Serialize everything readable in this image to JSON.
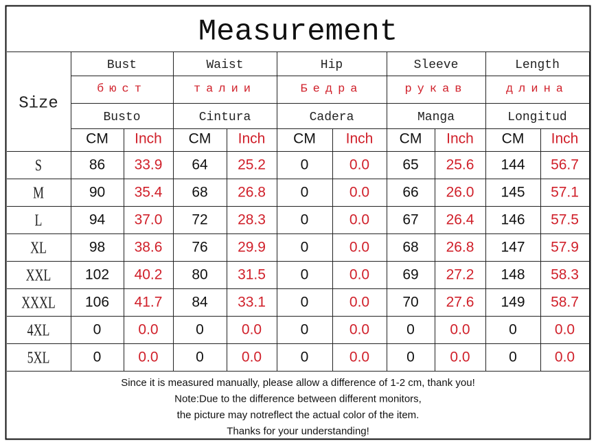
{
  "title": "Measurement",
  "table": {
    "size_header": "Size",
    "units": [
      "CM",
      "Inch"
    ],
    "columns": [
      {
        "en": "Bust",
        "ru": "бюст",
        "es": "Busto"
      },
      {
        "en": "Waist",
        "ru": "талии",
        "es": "Cintura"
      },
      {
        "en": "Hip",
        "ru": "Бедра",
        "es": "Cadera"
      },
      {
        "en": "Sleeve",
        "ru": "рукав",
        "es": "Manga"
      },
      {
        "en": "Length",
        "ru": "длина",
        "es": "Longitud"
      }
    ],
    "rows": [
      {
        "size": "S",
        "values": [
          "86",
          "33.9",
          "64",
          "25.2",
          "0",
          "0.0",
          "65",
          "25.6",
          "144",
          "56.7"
        ]
      },
      {
        "size": "M",
        "values": [
          "90",
          "35.4",
          "68",
          "26.8",
          "0",
          "0.0",
          "66",
          "26.0",
          "145",
          "57.1"
        ]
      },
      {
        "size": "L",
        "values": [
          "94",
          "37.0",
          "72",
          "28.3",
          "0",
          "0.0",
          "67",
          "26.4",
          "146",
          "57.5"
        ]
      },
      {
        "size": "XL",
        "values": [
          "98",
          "38.6",
          "76",
          "29.9",
          "0",
          "0.0",
          "68",
          "26.8",
          "147",
          "57.9"
        ]
      },
      {
        "size": "XXL",
        "values": [
          "102",
          "40.2",
          "80",
          "31.5",
          "0",
          "0.0",
          "69",
          "27.2",
          "148",
          "58.3"
        ]
      },
      {
        "size": "XXXL",
        "values": [
          "106",
          "41.7",
          "84",
          "33.1",
          "0",
          "0.0",
          "70",
          "27.6",
          "149",
          "58.7"
        ]
      },
      {
        "size": "4XL",
        "values": [
          "0",
          "0.0",
          "0",
          "0.0",
          "0",
          "0.0",
          "0",
          "0.0",
          "0",
          "0.0"
        ]
      },
      {
        "size": "5XL",
        "values": [
          "0",
          "0.0",
          "0",
          "0.0",
          "0",
          "0.0",
          "0",
          "0.0",
          "0",
          "0.0"
        ]
      }
    ]
  },
  "notes": [
    "Since it is measured manually, please allow a difference of 1-2 cm, thank you!",
    "Note:Due to the difference between different monitors,",
    "the picture may notreflect the actual color of the item.",
    "Thanks for your understanding!"
  ]
}
